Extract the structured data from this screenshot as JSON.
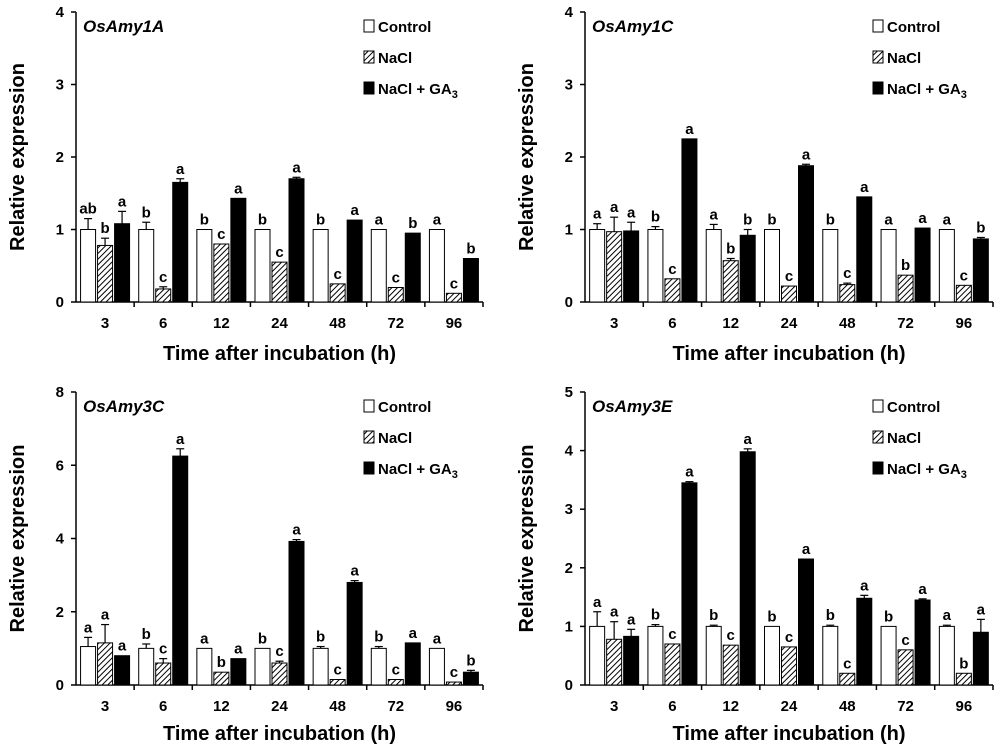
{
  "colors": {
    "control": "#ffffff",
    "nacl": "hatch",
    "ga3": "#000000",
    "axis": "#000000"
  },
  "legend": [
    "Control",
    "NaCl",
    "NaCl + GA3"
  ],
  "chart_data": [
    {
      "type": "bar",
      "title": "OsAmy1A",
      "xlabel": "Time after incubation (h)",
      "ylabel": "Relative expression",
      "ylim": [
        0,
        4
      ],
      "ystep": 1,
      "categories": [
        "3",
        "6",
        "12",
        "24",
        "48",
        "72",
        "96"
      ],
      "series": [
        {
          "name": "Control",
          "values": [
            1.0,
            1.0,
            1.0,
            1.0,
            1.0,
            1.0,
            1.0
          ],
          "errors": [
            0.15,
            0.1,
            0,
            0,
            0,
            0,
            0
          ],
          "labels": [
            "ab",
            "b",
            "b",
            "b",
            "b",
            "a",
            "a"
          ]
        },
        {
          "name": "NaCl",
          "values": [
            0.78,
            0.18,
            0.8,
            0.55,
            0.25,
            0.2,
            0.12
          ],
          "errors": [
            0.1,
            0.03,
            0,
            0,
            0,
            0,
            0
          ],
          "labels": [
            "b",
            "c",
            "c",
            "c",
            "c",
            "c",
            "c"
          ]
        },
        {
          "name": "NaCl + GA3",
          "values": [
            1.08,
            1.65,
            1.43,
            1.7,
            1.13,
            0.95,
            0.6
          ],
          "errors": [
            0.17,
            0.05,
            0,
            0.02,
            0,
            0,
            0
          ],
          "labels": [
            "a",
            "a",
            "a",
            "a",
            "a",
            "b",
            "b"
          ]
        }
      ]
    },
    {
      "type": "bar",
      "title": "OsAmy1C",
      "xlabel": "Time after incubation (h)",
      "ylabel": "Relative expression",
      "ylim": [
        0,
        4
      ],
      "ystep": 1,
      "categories": [
        "3",
        "6",
        "12",
        "24",
        "48",
        "72",
        "96"
      ],
      "series": [
        {
          "name": "Control",
          "values": [
            1.0,
            1.0,
            1.0,
            1.0,
            1.0,
            1.0,
            1.0
          ],
          "errors": [
            0.08,
            0.04,
            0.07,
            0,
            0,
            0,
            0
          ],
          "labels": [
            "a",
            "b",
            "a",
            "b",
            "b",
            "a",
            "a"
          ]
        },
        {
          "name": "NaCl",
          "values": [
            0.97,
            0.32,
            0.57,
            0.22,
            0.24,
            0.37,
            0.23
          ],
          "errors": [
            0.2,
            0,
            0.03,
            0,
            0.02,
            0,
            0
          ],
          "labels": [
            "a",
            "c",
            "b",
            "c",
            "c",
            "b",
            "c"
          ]
        },
        {
          "name": "NaCl + GA3",
          "values": [
            0.98,
            2.25,
            0.92,
            1.88,
            1.45,
            1.02,
            0.87
          ],
          "errors": [
            0.12,
            0,
            0.08,
            0.02,
            0,
            0,
            0.02
          ],
          "labels": [
            "a",
            "a",
            "b",
            "a",
            "a",
            "a",
            "b"
          ]
        }
      ]
    },
    {
      "type": "bar",
      "title": "OsAmy3C",
      "xlabel": "Time after incubation (h)",
      "ylabel": "Relative expression",
      "ylim": [
        0,
        8
      ],
      "ystep": 2,
      "categories": [
        "3",
        "6",
        "12",
        "24",
        "48",
        "72",
        "96"
      ],
      "series": [
        {
          "name": "Control",
          "values": [
            1.05,
            1.0,
            1.0,
            1.0,
            1.0,
            1.0,
            1.0
          ],
          "errors": [
            0.25,
            0.12,
            0,
            0,
            0.05,
            0.05,
            0
          ],
          "labels": [
            "a",
            "b",
            "a",
            "b",
            "b",
            "b",
            "a"
          ]
        },
        {
          "name": "NaCl",
          "values": [
            1.15,
            0.6,
            0.35,
            0.6,
            0.15,
            0.15,
            0.08
          ],
          "errors": [
            0.5,
            0.12,
            0,
            0.05,
            0,
            0,
            0
          ],
          "labels": [
            "a",
            "c",
            "b",
            "c",
            "c",
            "c",
            "c"
          ]
        },
        {
          "name": "NaCl + GA3",
          "values": [
            0.8,
            6.25,
            0.72,
            3.92,
            2.8,
            1.15,
            0.35
          ],
          "errors": [
            0,
            0.2,
            0,
            0.05,
            0.05,
            0,
            0.05
          ],
          "labels": [
            "a",
            "a",
            "a",
            "a",
            "a",
            "a",
            "b"
          ]
        }
      ]
    },
    {
      "type": "bar",
      "title": "OsAmy3E",
      "xlabel": "Time after incubation (h)",
      "ylabel": "Relative expression",
      "ylim": [
        0,
        5
      ],
      "ystep": 1,
      "categories": [
        "3",
        "6",
        "12",
        "24",
        "48",
        "72",
        "96"
      ],
      "series": [
        {
          "name": "Control",
          "values": [
            1.0,
            1.0,
            1.0,
            1.0,
            1.0,
            1.0,
            1.0
          ],
          "errors": [
            0.25,
            0.03,
            0.02,
            0,
            0.02,
            0,
            0.02
          ],
          "labels": [
            "a",
            "b",
            "b",
            "b",
            "b",
            "b",
            "a"
          ]
        },
        {
          "name": "NaCl",
          "values": [
            0.78,
            0.7,
            0.68,
            0.65,
            0.2,
            0.6,
            0.2
          ],
          "errors": [
            0.3,
            0,
            0,
            0,
            0,
            0,
            0
          ],
          "labels": [
            "a",
            "c",
            "c",
            "c",
            "c",
            "c",
            "b"
          ]
        },
        {
          "name": "NaCl + GA3",
          "values": [
            0.83,
            3.45,
            3.98,
            2.15,
            1.48,
            1.45,
            0.9
          ],
          "errors": [
            0.12,
            0.02,
            0.05,
            0,
            0.05,
            0.02,
            0.22
          ],
          "labels": [
            "a",
            "a",
            "a",
            "a",
            "a",
            "a",
            "a"
          ]
        }
      ]
    }
  ]
}
